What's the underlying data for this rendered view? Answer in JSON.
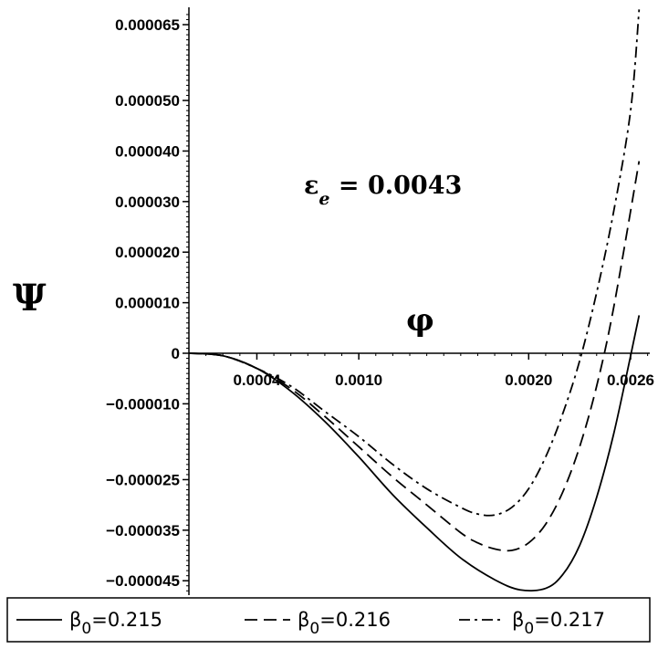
{
  "chart_data": {
    "type": "line",
    "xlabel": "φ",
    "ylabel": "Ψ",
    "annotation": {
      "symbol": "ε",
      "subscript": "e",
      "text": " = 0.0043"
    },
    "xlim": [
      0,
      0.0027
    ],
    "ylim": [
      -4.8e-05,
      6.8e-05
    ],
    "x_ticks": [
      {
        "value": 0.0004,
        "label": "0.0004"
      },
      {
        "value": 0.001,
        "label": "0.0010"
      },
      {
        "value": 0.002,
        "label": "0.0020"
      },
      {
        "value": 0.0026,
        "label": "0.0026"
      }
    ],
    "y_ticks": [
      {
        "value": 6.5e-05,
        "label": "0.000065"
      },
      {
        "value": 5e-05,
        "label": "0.000050"
      },
      {
        "value": 4e-05,
        "label": "0.000040"
      },
      {
        "value": 3e-05,
        "label": "0.000030"
      },
      {
        "value": 2e-05,
        "label": "0.000020"
      },
      {
        "value": 1e-05,
        "label": "0.000010"
      },
      {
        "value": 0,
        "label": "0"
      },
      {
        "value": -1e-05,
        "label": "−0.000010"
      },
      {
        "value": -2.5e-05,
        "label": "−0.000025"
      },
      {
        "value": -3.5e-05,
        "label": "−0.000035"
      },
      {
        "value": -4.5e-05,
        "label": "−0.000045"
      }
    ],
    "series": [
      {
        "legend_symbol": "β",
        "legend_sub": "0",
        "legend_value": "=0.215",
        "dash": "solid",
        "x": [
          0,
          0.0002,
          0.0004,
          0.0006,
          0.0008,
          0.001,
          0.0012,
          0.0014,
          0.0016,
          0.0018,
          0.00195,
          0.0021,
          0.0022,
          0.0023,
          0.0024,
          0.0025,
          0.0026,
          0.00265
        ],
        "y": [
          0,
          -5e-07,
          -3e-06,
          -7.5e-06,
          -1.35e-05,
          -2.05e-05,
          -2.8e-05,
          -3.45e-05,
          -4.05e-05,
          -4.48e-05,
          -4.68e-05,
          -4.65e-05,
          -4.38e-05,
          -3.8e-05,
          -2.85e-05,
          -1.6e-05,
          -5e-07,
          7.5e-06
        ]
      },
      {
        "legend_symbol": "β",
        "legend_sub": "0",
        "legend_value": "=0.216",
        "dash": "dashed",
        "x": [
          0,
          0.0002,
          0.0004,
          0.0006,
          0.0008,
          0.001,
          0.0012,
          0.0014,
          0.0016,
          0.0017,
          0.0018,
          0.0019,
          0.002,
          0.0021,
          0.0022,
          0.0023,
          0.0024,
          0.0025,
          0.00265
        ],
        "y": [
          0,
          -5e-07,
          -3e-06,
          -7e-06,
          -1.25e-05,
          -1.85e-05,
          -2.45e-05,
          -3e-05,
          -3.55e-05,
          -3.75e-05,
          -3.87e-05,
          -3.9e-05,
          -3.75e-05,
          -3.38e-05,
          -2.75e-05,
          -1.85e-05,
          -6.5e-06,
          9e-06,
          3.8e-05
        ]
      },
      {
        "legend_symbol": "β",
        "legend_sub": "0",
        "legend_value": "=0.217",
        "dash": "dashdot",
        "x": [
          0,
          0.0002,
          0.0004,
          0.0006,
          0.0008,
          0.001,
          0.0012,
          0.0014,
          0.0016,
          0.0017,
          0.0018,
          0.0019,
          0.002,
          0.0021,
          0.0022,
          0.0023,
          0.0024,
          0.0025,
          0.0026,
          0.00265
        ],
        "y": [
          0,
          -5e-07,
          -3e-06,
          -6.5e-06,
          -1.15e-05,
          -1.65e-05,
          -2.2e-05,
          -2.68e-05,
          -3.05e-05,
          -3.18e-05,
          -3.2e-05,
          -3.05e-05,
          -2.68e-05,
          -2.05e-05,
          -1.2e-05,
          -1.5e-06,
          1.2e-05,
          2.8e-05,
          4.8e-05,
          6.8e-05
        ]
      }
    ]
  }
}
